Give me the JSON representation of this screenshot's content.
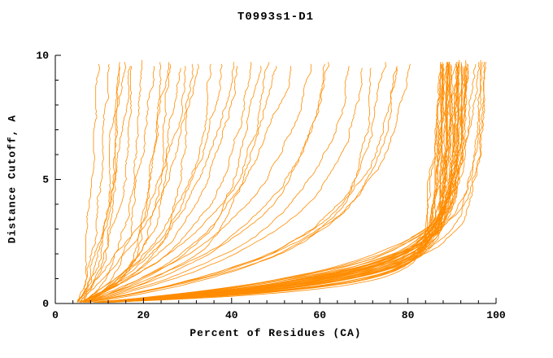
{
  "chart_data": {
    "type": "line",
    "title": "T0993s1-D1",
    "xlabel": "Percent of Residues (CA)",
    "ylabel": "Distance Cutoff, A",
    "xlim": [
      0,
      100
    ],
    "ylim": [
      0,
      10
    ],
    "x_major_ticks": [
      0,
      20,
      40,
      60,
      80,
      100
    ],
    "x_minor_step": 4,
    "y_major_ticks": [
      0,
      5,
      10
    ],
    "y_minor_step": 1,
    "grid": false,
    "legend": "none",
    "line_color": "#ff8c00",
    "axis_color": "#000000",
    "curve_format": [
      "x_start_percent",
      "x_max_percent",
      "tau",
      "slope",
      "seed"
    ],
    "curves": [
      [
        5,
        86,
        0.7,
        0.2,
        1
      ],
      [
        6,
        88,
        0.9,
        0.3,
        2
      ],
      [
        5,
        85,
        0.6,
        0.15,
        3
      ],
      [
        7,
        90,
        1.1,
        0.2,
        4
      ],
      [
        5,
        87,
        0.8,
        0.25,
        5
      ],
      [
        6,
        89,
        1.0,
        0.3,
        6
      ],
      [
        5,
        84,
        0.5,
        0.2,
        7
      ],
      [
        6,
        91,
        1.2,
        0.25,
        8
      ],
      [
        5,
        88,
        0.75,
        0.3,
        9
      ],
      [
        7,
        86,
        0.65,
        0.2,
        10
      ],
      [
        5,
        90,
        1.0,
        0.35,
        11
      ],
      [
        6,
        87,
        0.85,
        0.2,
        12
      ],
      [
        5,
        85,
        0.55,
        0.25,
        13
      ],
      [
        6,
        92,
        1.3,
        0.3,
        14
      ],
      [
        7,
        88,
        0.9,
        0.2,
        15
      ],
      [
        5,
        86,
        0.7,
        0.3,
        16
      ],
      [
        6,
        90,
        1.05,
        0.25,
        17
      ],
      [
        5,
        89,
        0.95,
        0.2,
        18
      ],
      [
        6,
        85,
        0.6,
        0.3,
        19
      ],
      [
        7,
        91,
        1.15,
        0.25,
        20
      ],
      [
        5,
        87,
        0.8,
        0.2,
        21
      ],
      [
        6,
        88,
        0.9,
        0.35,
        22
      ],
      [
        5,
        90,
        1.0,
        0.2,
        23
      ],
      [
        6,
        86,
        0.7,
        0.25,
        24
      ],
      [
        5,
        92,
        1.25,
        0.3,
        25
      ],
      [
        7,
        87,
        0.8,
        0.2,
        26
      ],
      [
        6,
        89,
        0.95,
        0.3,
        27
      ],
      [
        5,
        85,
        0.6,
        0.2,
        28
      ],
      [
        6,
        91,
        1.1,
        0.25,
        29
      ],
      [
        5,
        88,
        0.85,
        0.3,
        30
      ],
      [
        6,
        87,
        0.75,
        0.2,
        31
      ],
      [
        7,
        90,
        1.0,
        0.3,
        32
      ],
      [
        5,
        86,
        0.65,
        0.25,
        33
      ],
      [
        6,
        93,
        1.35,
        0.2,
        34
      ],
      [
        5,
        89,
        0.9,
        0.3,
        35
      ],
      [
        6,
        88,
        0.8,
        0.25,
        36
      ],
      [
        5,
        91,
        1.1,
        0.2,
        37
      ],
      [
        6,
        86,
        0.7,
        0.3,
        38
      ],
      [
        7,
        89,
        0.95,
        0.25,
        39
      ],
      [
        5,
        87,
        0.75,
        0.2,
        40
      ],
      [
        5,
        94,
        1.0,
        0.3,
        41
      ],
      [
        6,
        95,
        1.2,
        0.25,
        42
      ],
      [
        5,
        93,
        0.9,
        0.35,
        43
      ],
      [
        6,
        96,
        1.3,
        0.2,
        44
      ],
      [
        5,
        75,
        2.0,
        0.4,
        45
      ],
      [
        6,
        68,
        2.5,
        0.3,
        46
      ],
      [
        5,
        60,
        2.8,
        0.5,
        47
      ],
      [
        7,
        72,
        1.8,
        0.3,
        48
      ],
      [
        5,
        55,
        3.0,
        0.4,
        49
      ],
      [
        6,
        78,
        2.2,
        0.3,
        50
      ],
      [
        5,
        48,
        3.2,
        0.5,
        51
      ],
      [
        6,
        65,
        2.6,
        0.4,
        52
      ],
      [
        5,
        70,
        1.9,
        0.3,
        53
      ],
      [
        7,
        52,
        3.4,
        0.4,
        54
      ],
      [
        5,
        58,
        2.4,
        0.5,
        55
      ],
      [
        6,
        74,
        2.1,
        0.3,
        56
      ],
      [
        5,
        40,
        2.5,
        0.6,
        57
      ],
      [
        6,
        34,
        3.0,
        0.5,
        58
      ],
      [
        5,
        28,
        3.5,
        0.7,
        59
      ],
      [
        6,
        42,
        2.2,
        0.5,
        60
      ],
      [
        5,
        31,
        2.8,
        0.6,
        61
      ],
      [
        7,
        37,
        3.2,
        0.5,
        62
      ],
      [
        5,
        26,
        3.8,
        0.6,
        63
      ],
      [
        6,
        44,
        2.0,
        0.5,
        64
      ],
      [
        5,
        35,
        2.6,
        0.7,
        65
      ],
      [
        5,
        12,
        1.5,
        0.4,
        66
      ],
      [
        6,
        15,
        1.2,
        0.5,
        67
      ],
      [
        5,
        9,
        1.8,
        0.3,
        68
      ],
      [
        6,
        18,
        1.0,
        0.6,
        69
      ],
      [
        5,
        11,
        2.0,
        0.4,
        70
      ],
      [
        7,
        20,
        1.4,
        0.5,
        71
      ],
      [
        5,
        14,
        1.6,
        0.3,
        72
      ],
      [
        6,
        10,
        2.2,
        0.5,
        73
      ],
      [
        5,
        16,
        1.1,
        0.6,
        74
      ],
      [
        6,
        13,
        1.9,
        0.4,
        75
      ],
      [
        5,
        21,
        1.3,
        0.5,
        76
      ],
      [
        6,
        8,
        2.4,
        0.3,
        77
      ],
      [
        5,
        27,
        1.5,
        0.4,
        78
      ],
      [
        6,
        24,
        1.8,
        0.5,
        79
      ]
    ]
  }
}
